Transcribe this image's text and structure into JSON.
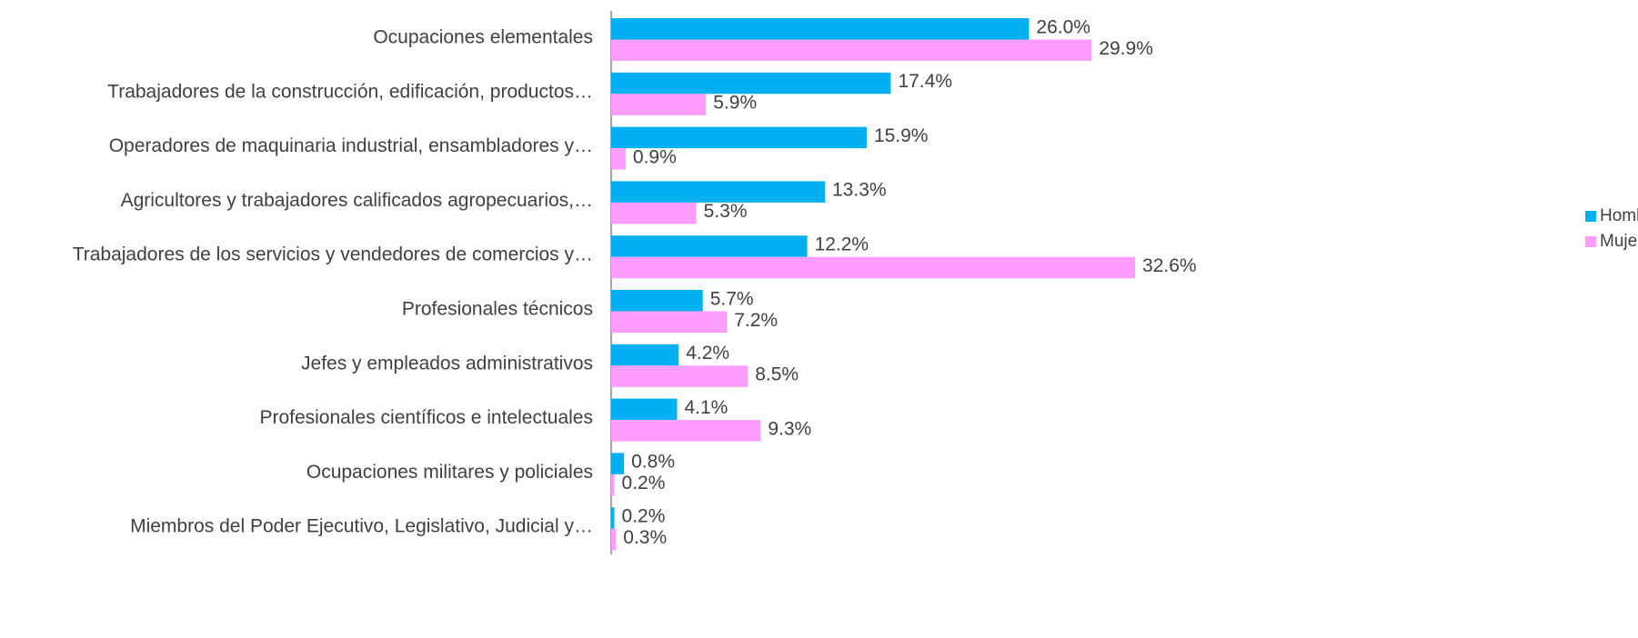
{
  "chart_data": {
    "type": "bar",
    "orientation": "horizontal",
    "categories": [
      "Ocupaciones elementales",
      "Trabajadores de la construcción, edificación, productos…",
      "Operadores de maquinaria industrial, ensambladores y…",
      "Agricultores y trabajadores calificados agropecuarios,…",
      "Trabajadores de los servicios y vendedores de comercios y…",
      "Profesionales técnicos",
      "Jefes y empleados administrativos",
      "Profesionales científicos e intelectuales",
      "Ocupaciones militares y policiales",
      "Miembros del Poder Ejecutivo, Legislativo, Judicial y…"
    ],
    "series": [
      {
        "name": "Hombre",
        "color": "#00b0f0",
        "values": [
          26.0,
          17.4,
          15.9,
          13.3,
          12.2,
          5.7,
          4.2,
          4.1,
          0.8,
          0.2
        ],
        "value_labels": [
          "26.0%",
          "17.4%",
          "15.9%",
          "13.3%",
          "12.2%",
          "5.7%",
          "4.2%",
          "4.1%",
          "0.8%",
          "0.2%"
        ]
      },
      {
        "name": "Mujer",
        "color": "#ff9cff",
        "values": [
          29.9,
          5.9,
          0.9,
          5.3,
          32.6,
          7.2,
          8.5,
          9.3,
          0.2,
          0.3
        ],
        "value_labels": [
          "29.9%",
          "5.9%",
          "0.9%",
          "5.3%",
          "32.6%",
          "7.2%",
          "8.5%",
          "9.3%",
          "0.2%",
          "0.3%"
        ]
      }
    ],
    "legend": "right"
  }
}
